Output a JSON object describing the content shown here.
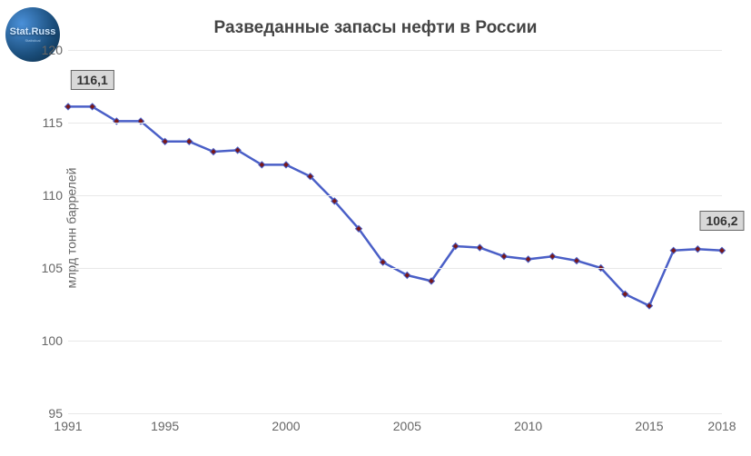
{
  "logo": {
    "text": "Stat.Russ",
    "subtitle": "Statistical"
  },
  "chart": {
    "type": "line",
    "title": "Разведанные запасы нефти в России",
    "ylabel": "млрд тонн баррелей",
    "xlim": [
      1991,
      2018
    ],
    "ylim": [
      95,
      120
    ],
    "yticks": [
      95,
      100,
      105,
      110,
      115,
      120
    ],
    "xticks": [
      1991,
      1995,
      2000,
      2005,
      2010,
      2015,
      2018
    ],
    "line_color": "#4a5fc7",
    "line_width": 2.5,
    "marker_fill": "#7a1818",
    "marker_stroke": "#4a5fc7",
    "marker_size": 3.5,
    "grid_color": "#e8e8e8",
    "background_color": "#ffffff",
    "tick_color": "#666666",
    "tick_fontsize": 14,
    "title_fontsize": 19,
    "title_color": "#444444",
    "callout_bg": "#d8d8d8",
    "callout_border": "#666666",
    "series": {
      "years": [
        1991,
        1992,
        1993,
        1994,
        1995,
        1996,
        1997,
        1998,
        1999,
        2000,
        2001,
        2002,
        2003,
        2004,
        2005,
        2006,
        2007,
        2008,
        2009,
        2010,
        2011,
        2012,
        2013,
        2014,
        2015,
        2016,
        2017,
        2018
      ],
      "values": [
        116.1,
        116.1,
        115.1,
        115.1,
        113.7,
        113.7,
        113.0,
        113.1,
        112.1,
        112.1,
        111.3,
        109.6,
        107.7,
        105.4,
        104.5,
        104.1,
        106.5,
        106.4,
        105.8,
        105.6,
        105.8,
        105.5,
        105.0,
        103.2,
        102.4,
        106.2,
        106.3,
        106.2
      ]
    },
    "callouts": [
      {
        "year": 1992,
        "value": 116.1,
        "label": "116,1",
        "dy": -18
      },
      {
        "year": 2018,
        "value": 106.2,
        "label": "106,2",
        "dy": -22
      }
    ]
  }
}
